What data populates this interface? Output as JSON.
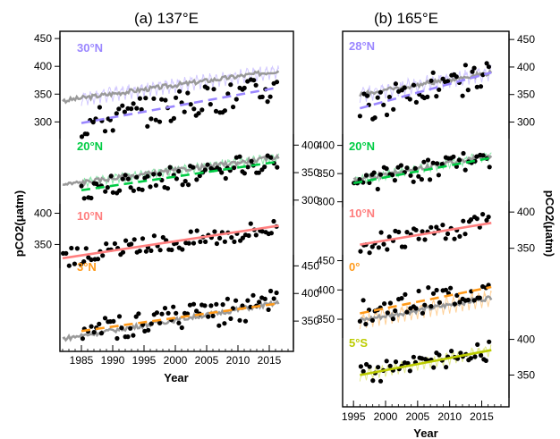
{
  "chart_data": [
    {
      "type": "line",
      "title": "(a) 137°E",
      "xlabel": "Year",
      "ylabel": "pCO2(μatm)",
      "xlim": [
        1982,
        2018
      ],
      "x_ticks": [
        "1985",
        "1990",
        "1995",
        "2000",
        "2005",
        "2010",
        "2015"
      ],
      "panels": [
        {
          "label": "30°N",
          "color": "#9b87ff",
          "ylim": [
            270,
            455
          ],
          "y_ticks": [
            "300",
            "350",
            "400",
            "450"
          ],
          "y_axis": "left",
          "trend_start": [
            1985,
            298
          ],
          "trend_end": [
            2016.5,
            362
          ],
          "gray_start": [
            1982,
            338
          ],
          "gray_end": [
            2016.5,
            392
          ],
          "model_amplitude": 28
        },
        {
          "label": "20°N",
          "color": "#00cc44",
          "ylim": [
            290,
            420
          ],
          "y_ticks": [
            "300",
            "350",
            "400"
          ],
          "y_axis": "right",
          "trend_start": [
            1985,
            318
          ],
          "trend_end": [
            2016.5,
            370
          ],
          "gray_start": [
            1982,
            328
          ],
          "gray_end": [
            2016.5,
            378
          ],
          "model_amplitude": 18
        },
        {
          "label": "10°N",
          "color": "#ff7f7f",
          "ylim": [
            312,
            415
          ],
          "y_ticks": [
            "350",
            "400"
          ],
          "y_axis": "left",
          "trend_start": [
            1982,
            328
          ],
          "trend_end": [
            2016.5,
            380
          ],
          "gray_start": null,
          "gray_end": null,
          "model_amplitude": 0
        },
        {
          "label": "3°N",
          "color": "#ff9a1a",
          "ylim": [
            300,
            470
          ],
          "y_ticks": [
            "350",
            "400",
            "450"
          ],
          "y_axis": "right",
          "trend_start": [
            1985,
            332
          ],
          "trend_end": [
            2016.5,
            382
          ],
          "gray_start": [
            1982,
            318
          ],
          "gray_end": [
            2016.5,
            383
          ],
          "model_amplitude": 0
        }
      ]
    },
    {
      "type": "line",
      "title": "(b) 165°E",
      "xlabel": "Year",
      "ylabel": "pCO2(μatm)",
      "xlim": [
        1994,
        2018
      ],
      "x_ticks": [
        "1995",
        "2000",
        "2005",
        "2010",
        "2015"
      ],
      "panels": [
        {
          "label": "28°N",
          "color": "#9b87ff",
          "ylim": [
            270,
            460
          ],
          "y_ticks": [
            "300",
            "350",
            "400",
            "450"
          ],
          "y_axis": "right",
          "trend_start": [
            1996,
            325
          ],
          "trend_end": [
            2016.5,
            390
          ],
          "gray_start": [
            1996,
            350
          ],
          "gray_end": [
            2016.5,
            390
          ],
          "model_amplitude": 30
        },
        {
          "label": "20°N",
          "color": "#00cc44",
          "ylim": [
            290,
            420
          ],
          "y_ticks": [
            "300",
            "350",
            "400"
          ],
          "y_axis": "left",
          "trend_start": [
            1995,
            333
          ],
          "trend_end": [
            2016.5,
            378
          ],
          "gray_start": [
            1995,
            338
          ],
          "gray_end": [
            2016.5,
            382
          ],
          "model_amplitude": 18
        },
        {
          "label": "10°N",
          "color": "#ff7f7f",
          "ylim": [
            320,
            415
          ],
          "y_ticks": [
            "350",
            "400"
          ],
          "y_axis": "right",
          "trend_start": [
            1996,
            355
          ],
          "trend_end": [
            2016.5,
            385
          ],
          "gray_start": null,
          "gray_end": null,
          "model_amplitude": 0
        },
        {
          "label": "0°",
          "color": "#ff9a1a",
          "ylim": [
            318,
            460
          ],
          "y_ticks": [
            "350",
            "400",
            "450"
          ],
          "y_axis": "left",
          "trend_start": [
            1996,
            360
          ],
          "trend_end": [
            2016.5,
            405
          ],
          "gray_start": [
            1996,
            348
          ],
          "gray_end": [
            2016.5,
            387
          ],
          "model_amplitude": 30
        },
        {
          "label": "5°S",
          "color": "#bccc00",
          "ylim": [
            318,
            412
          ],
          "y_ticks": [
            "350",
            "400"
          ],
          "y_axis": "right",
          "trend_start": [
            1996,
            350
          ],
          "trend_end": [
            2016.5,
            385
          ],
          "gray_start": null,
          "gray_end": null,
          "model_amplitude": 18
        }
      ]
    }
  ]
}
